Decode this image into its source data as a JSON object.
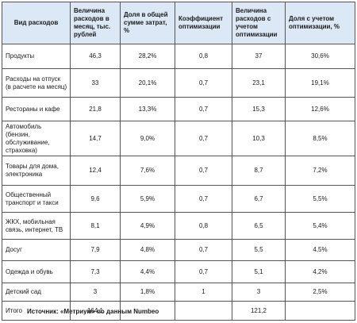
{
  "table": {
    "headers": [
      "Вид расходов",
      "Величина расходов в месяц, тыс. рублей",
      "Доля в общей сумме затрат, %",
      "Коэффициент оптимизации",
      "Величина расходов с учетом оптимизации",
      "Доля с учетом оптимизации, %"
    ],
    "rows": [
      [
        "Продукты",
        "46,3",
        "28,2%",
        "0,8",
        "37",
        "30,6%"
      ],
      [
        "Расходы на отпуск (в расчете на месяц)",
        "33",
        "20,1%",
        "0,7",
        "23,1",
        "19,1%"
      ],
      [
        "Рестораны и кафе",
        "21,8",
        "13,3%",
        "0,7",
        "15,3",
        "12,6%"
      ],
      [
        "Автомобиль (бензин, обслуживание, страховка)",
        "14,7",
        "9,0%",
        "0,7",
        "10,3",
        "8,5%"
      ],
      [
        "Товары для дома, электроника",
        "12,4",
        "7,6%",
        "0,7",
        "8,7",
        "7,2%"
      ],
      [
        "Общественный транспорт и такси",
        "9,6",
        "5,9%",
        "0,7",
        "6,7",
        "5,5%"
      ],
      [
        "ЖКХ, мобильная связь, интернет, ТВ",
        "8,1",
        "4,9%",
        "0,8",
        "6,5",
        "5,4%"
      ],
      [
        "Досуг",
        "7,9",
        "4,8%",
        "0,7",
        "5,5",
        "4,5%"
      ],
      [
        "Одежда и обувь",
        "7,3",
        "4,4%",
        "0,7",
        "5,1",
        "4,2%"
      ],
      [
        "Детский сад",
        "3",
        "1,8%",
        "1",
        "3",
        "2,5%"
      ],
      [
        "Итого",
        "164,1",
        "",
        "",
        "121,2",
        ""
      ]
    ]
  },
  "source": "Источник: «Метриум» по данным Numbeo",
  "colors": {
    "header_bg": "#dce8f5",
    "border": "#555555"
  }
}
